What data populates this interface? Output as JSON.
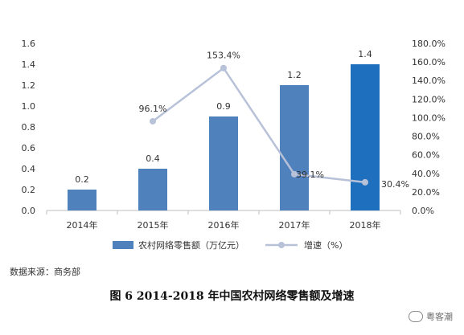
{
  "chart_data": {
    "type": "bar",
    "categories": [
      "2014年",
      "2015年",
      "2016年",
      "2017年",
      "2018年"
    ],
    "series": [
      {
        "name": "农村网络零售额（万亿元）",
        "type": "bar",
        "axis": "left",
        "values": [
          0.2,
          0.4,
          0.9,
          1.2,
          1.4
        ],
        "data_labels": [
          "0.2",
          "0.4",
          "0.9",
          "1.2",
          "1.4"
        ],
        "color": "#4f81bd",
        "highlight_color": "#1f6fbf"
      },
      {
        "name": "增速（%）",
        "type": "line",
        "axis": "right",
        "values": [
          null,
          96.1,
          153.4,
          39.1,
          30.4
        ],
        "data_labels": [
          "",
          "96.1%",
          "153.4%",
          "39.1%",
          "30.4%"
        ],
        "color": "#b7c1d8"
      }
    ],
    "left_axis": {
      "ylim": [
        0,
        1.6
      ],
      "ticks": [
        "0.0",
        "0.2",
        "0.4",
        "0.6",
        "0.8",
        "1.0",
        "1.2",
        "1.4",
        "1.6"
      ]
    },
    "right_axis": {
      "ylim": [
        0,
        180
      ],
      "ticks": [
        "0.0%",
        "20.0%",
        "40.0%",
        "60.0%",
        "80.0%",
        "100.0%",
        "120.0%",
        "140.0%",
        "160.0%",
        "180.0%"
      ]
    },
    "grid": false,
    "legend_position": "bottom"
  },
  "source_text": "数据来源：商务部",
  "caption": "图 6  2014-2018 年中国农村网络零售额及增速",
  "watermark_text": "粤客潮"
}
